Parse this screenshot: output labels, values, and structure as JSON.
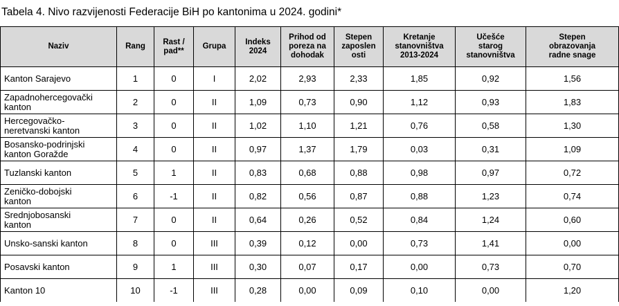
{
  "caption": "Tabela 4. Nivo razvijenosti Federacije BiH po kantonima u 2024. godini*",
  "headers": [
    [
      "Naziv"
    ],
    [
      "Rang"
    ],
    [
      "Rast /",
      "pad**"
    ],
    [
      "Grupa"
    ],
    [
      "Indeks",
      "2024"
    ],
    [
      "Prihod od",
      "poreza na",
      "dohodak"
    ],
    [
      "Stepen",
      "zaposlen",
      "osti"
    ],
    [
      "Kretanje",
      "stanovništva",
      "2013-2024"
    ],
    [
      "Učešće",
      "starog",
      "stanovništva"
    ],
    [
      "Stepen",
      "obrazovanja",
      "radne snage"
    ]
  ],
  "rows": [
    {
      "name": [
        "Kanton Sarajevo"
      ],
      "cells": [
        "1",
        "0",
        "I",
        "2,02",
        "2,93",
        "2,33",
        "1,85",
        "0,92",
        "1,56"
      ]
    },
    {
      "name": [
        "Zapadnohercegovački",
        "kanton"
      ],
      "cells": [
        "2",
        "0",
        "II",
        "1,09",
        "0,73",
        "0,90",
        "1,12",
        "0,93",
        "1,83"
      ]
    },
    {
      "name": [
        "Hercegovačko-",
        "neretvanski kanton"
      ],
      "cells": [
        "3",
        "0",
        "II",
        "1,02",
        "1,10",
        "1,21",
        "0,76",
        "0,58",
        "1,30"
      ]
    },
    {
      "name": [
        "Bosansko-podrinjski",
        "kanton Goražde"
      ],
      "cells": [
        "4",
        "0",
        "II",
        "0,97",
        "1,37",
        "1,79",
        "0,03",
        "0,31",
        "1,09"
      ]
    },
    {
      "name": [
        "Tuzlanski kanton"
      ],
      "cells": [
        "5",
        "1",
        "II",
        "0,83",
        "0,68",
        "0,88",
        "0,98",
        "0,97",
        "0,72"
      ]
    },
    {
      "name": [
        "Zeničko-dobojski",
        "kanton"
      ],
      "cells": [
        "6",
        "-1",
        "II",
        "0,82",
        "0,56",
        "0,87",
        "0,88",
        "1,23",
        "0,74"
      ]
    },
    {
      "name": [
        "Srednjobosanski",
        "kanton"
      ],
      "cells": [
        "7",
        "0",
        "II",
        "0,64",
        "0,26",
        "0,52",
        "0,84",
        "1,24",
        "0,60"
      ]
    },
    {
      "name": [
        "Unsko-sanski kanton"
      ],
      "cells": [
        "8",
        "0",
        "III",
        "0,39",
        "0,12",
        "0,00",
        "0,73",
        "1,41",
        "0,00"
      ]
    },
    {
      "name": [
        "Posavski kanton"
      ],
      "cells": [
        "9",
        "1",
        "III",
        "0,30",
        "0,07",
        "0,17",
        "0,00",
        "0,73",
        "0,70"
      ]
    },
    {
      "name": [
        "Kanton 10"
      ],
      "cells": [
        "10",
        "-1",
        "III",
        "0,28",
        "0,00",
        "0,09",
        "0,10",
        "0,00",
        "1,20"
      ]
    }
  ]
}
